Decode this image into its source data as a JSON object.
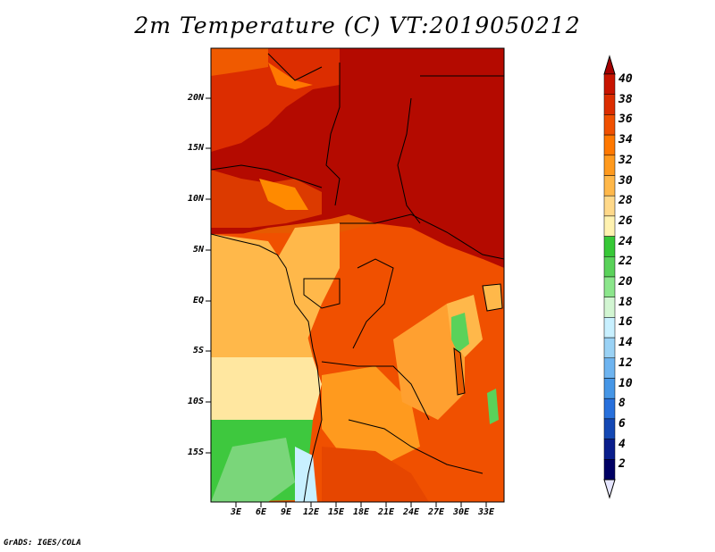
{
  "title": "2m Temperature (C) VT:2019050212",
  "footer": "GrADS: IGES/COLA",
  "map": {
    "lon_range": [
      0,
      35
    ],
    "lat_range": [
      -19,
      25
    ],
    "y_ticks": [
      "20N",
      "15N",
      "10N",
      "5N",
      "EQ",
      "5S",
      "10S",
      "15S"
    ],
    "x_ticks": [
      "3E",
      "6E",
      "9E",
      "12E",
      "15E",
      "18E",
      "21E",
      "24E",
      "27E",
      "30E",
      "33E"
    ]
  },
  "colorbar": {
    "labels": [
      "40",
      "38",
      "36",
      "34",
      "32",
      "30",
      "28",
      "26",
      "24",
      "22",
      "20",
      "18",
      "16",
      "14",
      "12",
      "10",
      "8",
      "6",
      "4",
      "2"
    ],
    "colors": [
      "#a50000",
      "#c81400",
      "#dc2d00",
      "#f05000",
      "#ff7800",
      "#ff9a1e",
      "#ffb84a",
      "#ffd98a",
      "#fff2b0",
      "#37c837",
      "#5ad25a",
      "#8ce68c",
      "#d2f5d2",
      "#c8f0ff",
      "#9ad2f5",
      "#6eb4f0",
      "#4696e6",
      "#2870dc",
      "#1448b4",
      "#0a1e8c",
      "#000064",
      "#e6e6ff"
    ]
  }
}
